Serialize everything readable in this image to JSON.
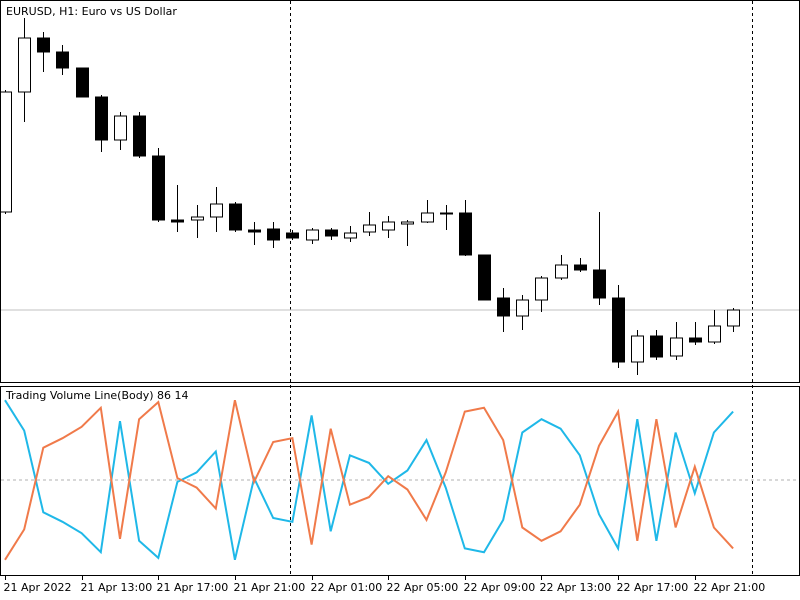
{
  "chart_data": [
    {
      "type": "candlestick",
      "title": "EURUSD, H1:  Euro vs US Dollar",
      "categories": [
        "21 Apr 2022",
        null,
        null,
        null,
        "21 Apr 13:00",
        null,
        null,
        null,
        "21 Apr 17:00",
        null,
        null,
        null,
        "21 Apr 21:00",
        null,
        null,
        null,
        "22 Apr 01:00",
        null,
        null,
        null,
        "22 Apr 05:00",
        null,
        null,
        null,
        "22 Apr 09:00",
        null,
        null,
        null,
        "22 Apr 13:00",
        null,
        null,
        null,
        "22 Apr 17:00",
        null,
        null,
        null,
        "22 Apr 21:00",
        null,
        null
      ],
      "open": [
        1.08572,
        1.09052,
        1.09268,
        1.09212,
        1.09148,
        1.09032,
        1.0886,
        1.08956,
        1.08796,
        1.0854,
        1.0854,
        1.08552,
        1.08604,
        1.085,
        1.08504,
        1.08488,
        1.0846,
        1.085,
        1.08468,
        1.08492,
        1.085,
        1.08524,
        1.08532,
        1.08568,
        1.08568,
        1.084,
        1.08228,
        1.08156,
        1.0822,
        1.08308,
        1.0836,
        1.0834,
        1.08228,
        1.07972,
        1.08076,
        1.07996,
        1.08068,
        1.08052,
        1.08116
      ],
      "high": [
        1.0906,
        1.09348,
        1.09292,
        1.0924,
        1.09148,
        1.0904,
        1.08972,
        1.08972,
        1.08828,
        1.0868,
        1.086,
        1.08672,
        1.08612,
        1.08532,
        1.08532,
        1.085,
        1.08508,
        1.08508,
        1.08516,
        1.08572,
        1.08556,
        1.0854,
        1.0862,
        1.086,
        1.0862,
        1.084,
        1.08268,
        1.0824,
        1.08316,
        1.084,
        1.08388,
        1.08572,
        1.0828,
        1.081,
        1.081,
        1.08132,
        1.08132,
        1.0818,
        1.08188
      ],
      "low": [
        1.08564,
        1.08932,
        1.09132,
        1.0912,
        1.09032,
        1.08812,
        1.0882,
        1.08788,
        1.08532,
        1.08492,
        1.08468,
        1.08492,
        1.08492,
        1.0844,
        1.08428,
        1.0846,
        1.08444,
        1.0846,
        1.08452,
        1.08476,
        1.08468,
        1.08436,
        1.08528,
        1.085,
        1.08396,
        1.0822,
        1.08092,
        1.081,
        1.08172,
        1.083,
        1.08332,
        1.082,
        1.07948,
        1.0792,
        1.0798,
        1.0798,
        1.0804,
        1.08044,
        1.08092
      ],
      "close": [
        1.09052,
        1.09268,
        1.09212,
        1.09148,
        1.09032,
        1.0886,
        1.08956,
        1.08796,
        1.0854,
        1.08532,
        1.08552,
        1.08604,
        1.085,
        1.08492,
        1.0846,
        1.08468,
        1.085,
        1.08476,
        1.08488,
        1.0852,
        1.08532,
        1.08532,
        1.08568,
        1.08564,
        1.084,
        1.0822,
        1.08156,
        1.0822,
        1.08308,
        1.0836,
        1.0834,
        1.08228,
        1.07972,
        1.08076,
        1.07992,
        1.08068,
        1.08052,
        1.08116,
        1.0818
      ],
      "ylim": [
        1.079,
        1.094
      ],
      "price_line": 1.0818,
      "bull_color": "#ffffff",
      "bear_color": "#000000"
    },
    {
      "type": "line",
      "title": "Trading Volume Line(Body)",
      "series": [
        {
          "color": "#1fb8e8",
          "values": [
            92,
            76,
            33,
            28,
            22,
            12,
            81,
            18,
            9,
            49,
            54,
            65,
            8,
            51,
            30,
            28,
            84,
            23,
            63,
            59,
            48,
            55,
            71,
            46,
            14,
            12,
            29,
            75,
            82,
            77,
            63,
            32,
            14,
            82,
            18,
            75,
            43,
            75,
            86
          ]
        },
        {
          "color": "#f07a4a",
          "values": [
            8,
            24,
            67,
            72,
            78,
            88,
            19,
            82,
            91,
            51,
            46,
            35,
            92,
            49,
            70,
            72,
            16,
            77,
            37,
            41,
            52,
            45,
            29,
            54,
            86,
            88,
            71,
            25,
            18,
            23,
            37,
            68,
            86,
            18,
            82,
            25,
            57,
            25,
            14
          ]
        }
      ],
      "ylim": [
        0,
        100
      ],
      "levels": [
        50
      ]
    }
  ]
}
